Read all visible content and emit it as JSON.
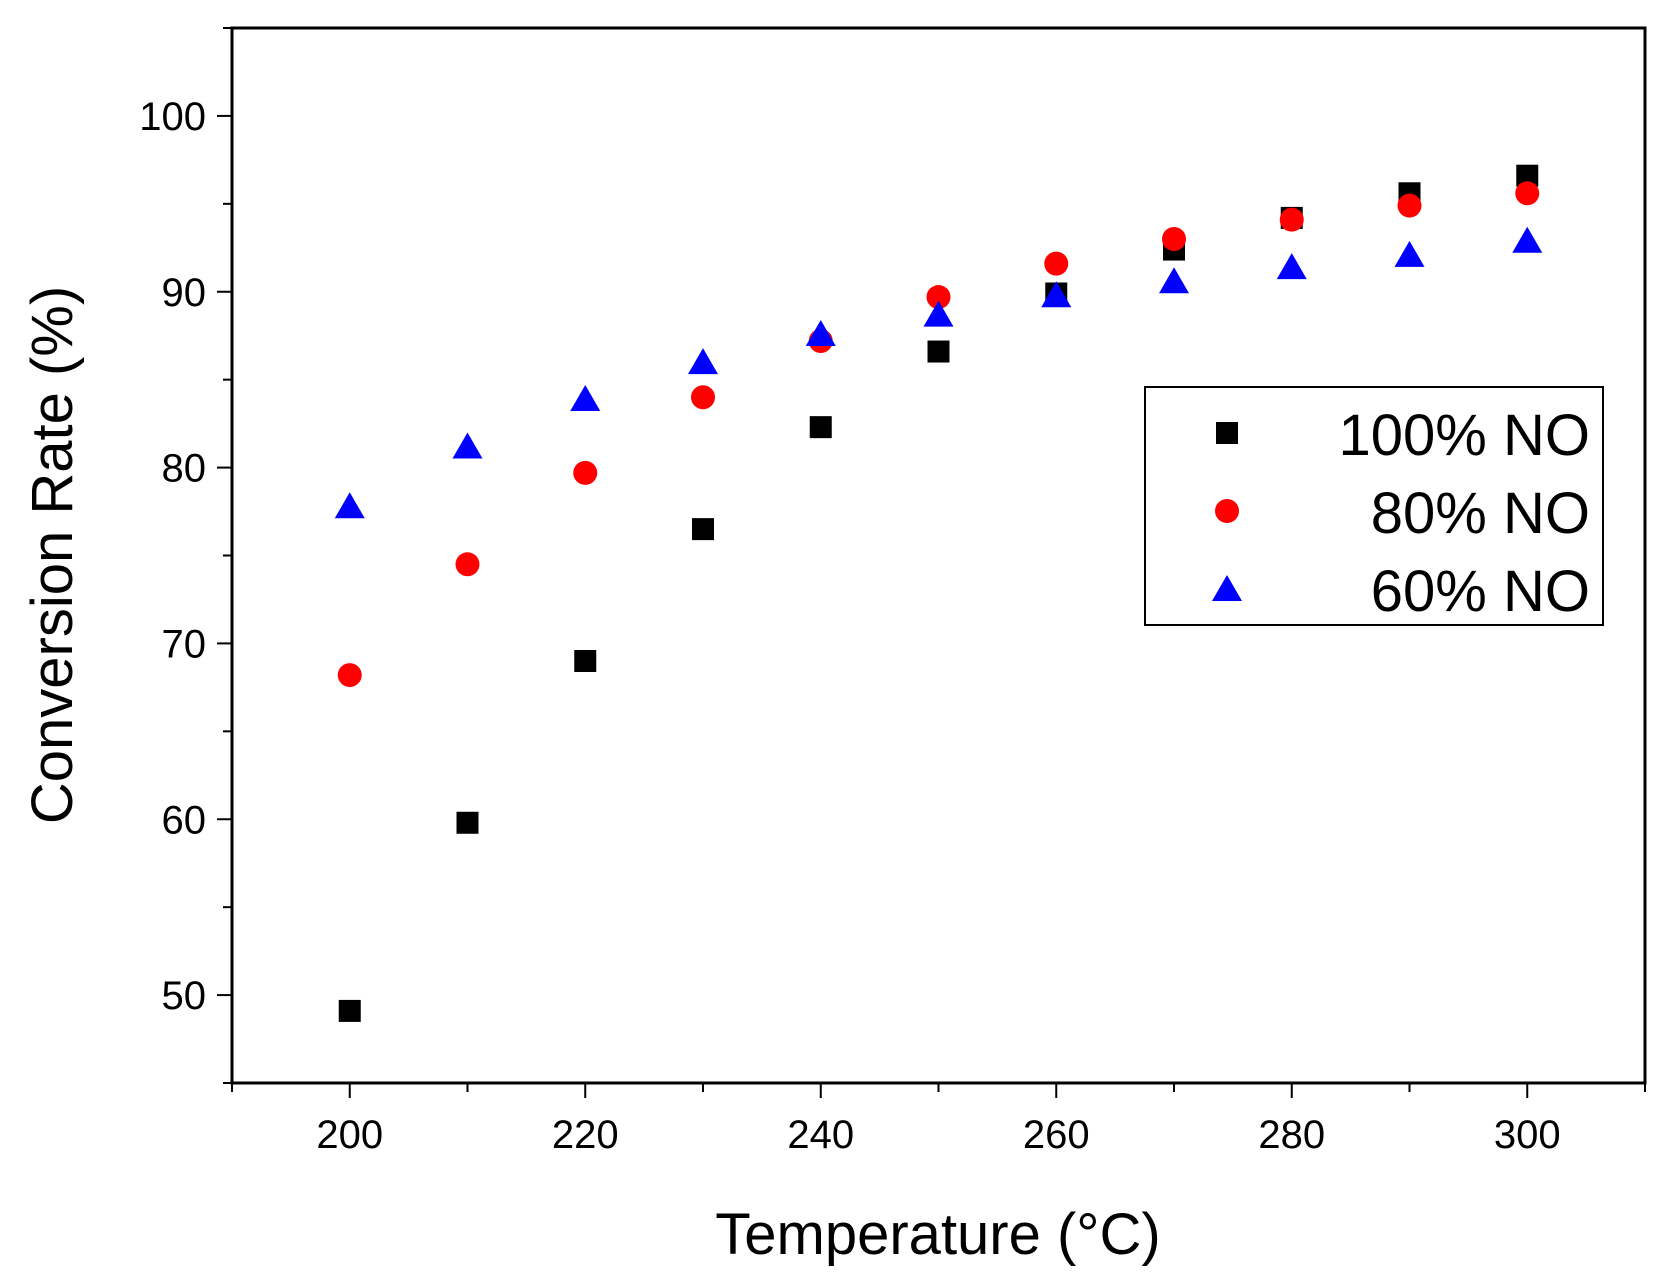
{
  "chart_data": {
    "type": "scatter",
    "title": "",
    "xlabel": "Temperature (°C)",
    "ylabel": "Conversion Rate (%)",
    "xlim": [
      190,
      310
    ],
    "ylim": [
      45,
      105
    ],
    "x_ticks": [
      200,
      220,
      240,
      260,
      280,
      300
    ],
    "y_ticks": [
      50,
      60,
      70,
      80,
      90,
      100
    ],
    "x": [
      200,
      210,
      220,
      230,
      240,
      250,
      260,
      270,
      280,
      290,
      300
    ],
    "legend_position": "center-right",
    "series": [
      {
        "name": "100% NO",
        "marker": "square",
        "color": "#000000",
        "values": [
          49.1,
          59.8,
          69.0,
          76.5,
          82.3,
          86.6,
          89.9,
          92.4,
          94.2,
          95.6,
          96.6
        ]
      },
      {
        "name": "80% NO",
        "marker": "circle",
        "color": "#ff0000",
        "values": [
          68.2,
          74.5,
          79.7,
          84.0,
          87.2,
          89.7,
          91.6,
          93.0,
          94.1,
          94.9,
          95.6
        ]
      },
      {
        "name": "60% NO",
        "marker": "triangle",
        "color": "#0000ff",
        "values": [
          77.8,
          81.2,
          83.9,
          86.0,
          87.6,
          88.7,
          89.8,
          90.6,
          91.4,
          92.1,
          92.9
        ]
      }
    ]
  }
}
